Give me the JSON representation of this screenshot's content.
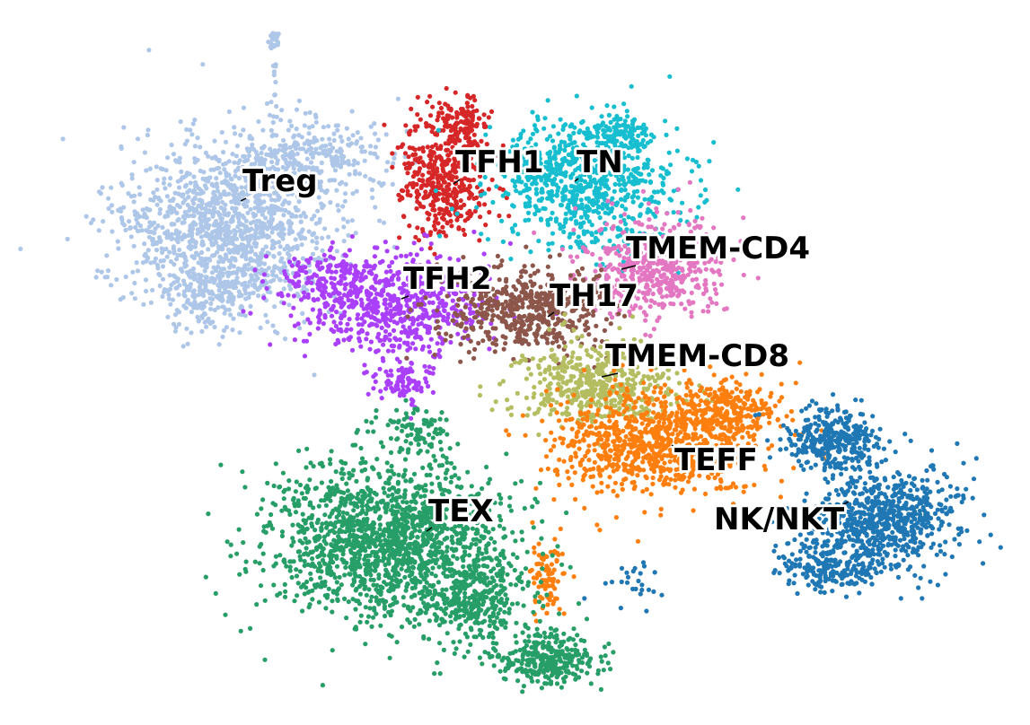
{
  "chart_data": {
    "type": "scatter",
    "title": "",
    "xlabel": "",
    "ylabel": "",
    "axes_visible": false,
    "grid": false,
    "legend": "on data",
    "clusters": [
      {
        "name": "Treg",
        "color": "#aec7e8"
      },
      {
        "name": "TFH1",
        "color": "#d62728"
      },
      {
        "name": "TN",
        "color": "#17becf"
      },
      {
        "name": "TMEM-CD4",
        "color": "#e377c2"
      },
      {
        "name": "TFH2",
        "color": "#aa40fc"
      },
      {
        "name": "TH17",
        "color": "#8c564b"
      },
      {
        "name": "TMEM-CD8",
        "color": "#b5bd61"
      },
      {
        "name": "TEFF",
        "color": "#ff7f0e"
      },
      {
        "name": "NK/NKT",
        "color": "#1f77b4"
      },
      {
        "name": "TEX",
        "color": "#279e68"
      }
    ]
  }
}
